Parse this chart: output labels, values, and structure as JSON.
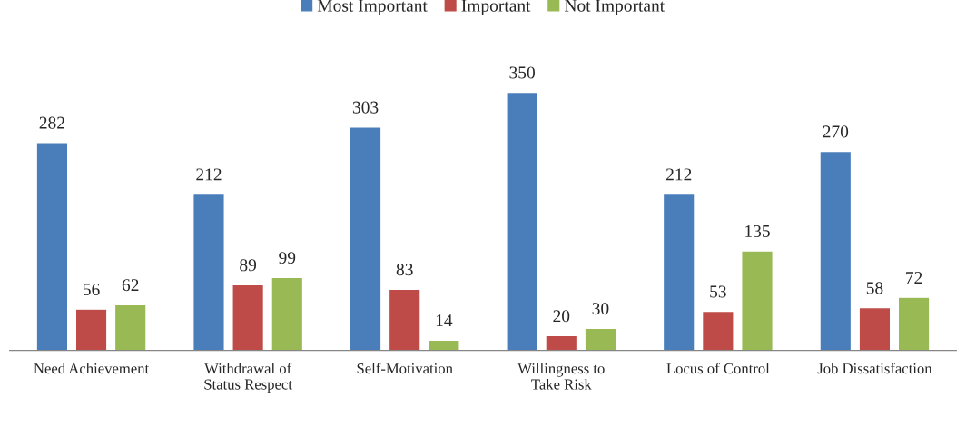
{
  "chart_data": {
    "type": "bar",
    "categories": [
      "Need Achievement",
      "Withdrawal of\nStatus Respect",
      "Self-Motivation",
      "Willingness to\nTake Risk",
      "Locus of Control",
      "Job Dissatisfaction"
    ],
    "series": [
      {
        "name": "Most Important",
        "color": "#4a7ebb",
        "values": [
          282,
          212,
          303,
          350,
          212,
          270
        ]
      },
      {
        "name": "Important",
        "color": "#be4b48",
        "values": [
          56,
          89,
          83,
          20,
          53,
          58
        ]
      },
      {
        "name": "Not Important",
        "color": "#98b954",
        "values": [
          62,
          99,
          14,
          30,
          135,
          72
        ]
      }
    ],
    "data_labels": true,
    "legend": "top",
    "grid": false
  }
}
